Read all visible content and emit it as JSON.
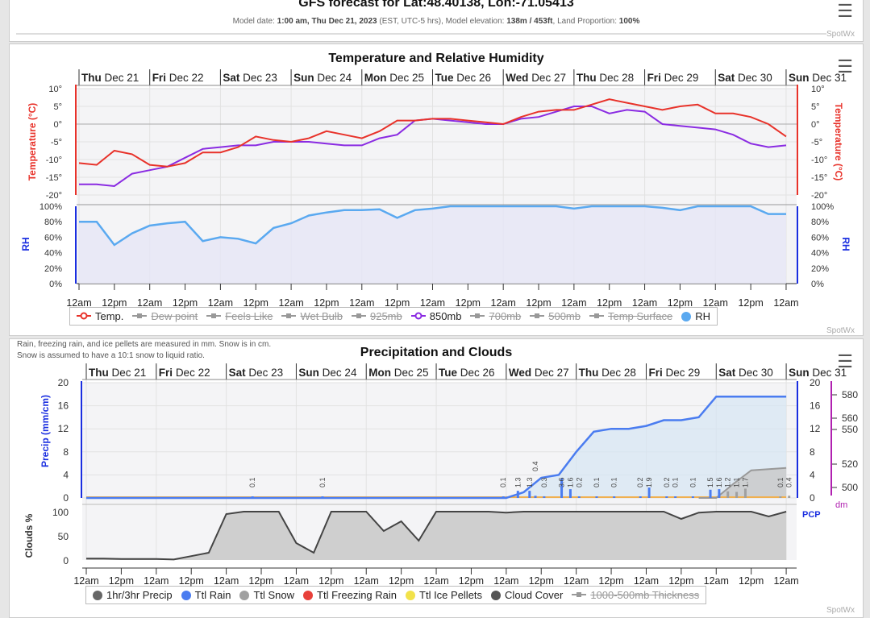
{
  "header": {
    "title": "GFS forecast for Lat:48.40138, Lon:-71.05413",
    "model_date_label": "Model date:",
    "model_date": "1:00 am, Thu Dec 21, 2023",
    "tz": "(EST, UTC-5 hrs),",
    "elev_label": "Model elevation:",
    "elev": "138m / 453ft",
    "land_label": ", Land Proportion:",
    "land": "100%",
    "credit": "SpotWx"
  },
  "days": [
    [
      "Thu",
      "Dec 21"
    ],
    [
      "Fri",
      "Dec 22"
    ],
    [
      "Sat",
      "Dec 23"
    ],
    [
      "Sun",
      "Dec 24"
    ],
    [
      "Mon",
      "Dec 25"
    ],
    [
      "Tue",
      "Dec 26"
    ],
    [
      "Wed",
      "Dec 27"
    ],
    [
      "Thu",
      "Dec 28"
    ],
    [
      "Fri",
      "Dec 29"
    ],
    [
      "Sat",
      "Dec 30"
    ],
    [
      "Sun",
      "Dec 31"
    ]
  ],
  "hour_labels": [
    "12am",
    "12pm"
  ],
  "temp_chart": {
    "title": "Temperature and Relative Humidity",
    "credit": "SpotWx",
    "y_left_label": "Temperature (°C)",
    "y_right_label": "Temperature (°C)",
    "rh_label": "RH",
    "temp_ticks": [
      "10°",
      "5°",
      "0°",
      "-5°",
      "-10°",
      "-15°",
      "-20°"
    ],
    "rh_ticks": [
      "100%",
      "80%",
      "60%",
      "40%",
      "20%",
      "0%"
    ],
    "legend": [
      {
        "label": "Temp.",
        "color": "#e8322a",
        "on": true,
        "icon": "circle-line"
      },
      {
        "label": "Dew point",
        "on": false,
        "icon": "diamond-line"
      },
      {
        "label": "Feels Like",
        "on": false,
        "icon": "square-line"
      },
      {
        "label": "Wet Bulb",
        "on": false,
        "icon": "triangle-line"
      },
      {
        "label": "925mb",
        "on": false,
        "icon": "triangle-down-line"
      },
      {
        "label": "850mb",
        "color": "#8a2be2",
        "on": true,
        "icon": "circle-line"
      },
      {
        "label": "700mb",
        "on": false,
        "icon": "diamond-line"
      },
      {
        "label": "500mb",
        "on": false,
        "icon": "square-line"
      },
      {
        "label": "Temp Surface",
        "on": false,
        "icon": "triangle-line"
      },
      {
        "label": "RH",
        "color": "#5aa9f0",
        "on": true,
        "icon": "circle"
      }
    ]
  },
  "precip_chart": {
    "title": "Precipitation and Clouds",
    "credit": "SpotWx",
    "note1": "Rain, freezing rain, and ice pellets are measured in mm. Snow is in cm.",
    "note2": "Snow is assumed to have a 10:1 snow to liquid ratio.",
    "y_left_label": "Precip (mm/cm)",
    "y_right_label": "PCP",
    "thick_label": "dm",
    "cloud_label": "Clouds %",
    "precip_ticks": [
      "20",
      "16",
      "12",
      "8",
      "4",
      "0"
    ],
    "thick_ticks": [
      "580",
      "560",
      "550",
      "520",
      "500"
    ],
    "cloud_ticks": [
      "100",
      "50",
      "0"
    ],
    "legend": [
      {
        "label": "1hr/3hr Precip",
        "color": "#666666",
        "on": true
      },
      {
        "label": "Ttl Rain",
        "color": "#4a7cf0",
        "on": true
      },
      {
        "label": "Ttl Snow",
        "color": "#a0a0a0",
        "on": true
      },
      {
        "label": "Ttl Freezing Rain",
        "color": "#e8403a",
        "on": true
      },
      {
        "label": "Ttl Ice Pellets",
        "color": "#f2e24a",
        "on": true
      },
      {
        "label": "Cloud Cover",
        "color": "#555555",
        "on": true
      },
      {
        "label": "1000-500mb Thickness",
        "on": false
      }
    ]
  },
  "chart_data": [
    {
      "type": "line",
      "title": "Temperature and Relative Humidity",
      "x_start": "2023-12-21 00:00",
      "x_interval_hours": 6,
      "ylim_temp": [
        -20,
        10
      ],
      "ylim_rh": [
        0,
        100
      ],
      "series": [
        {
          "name": "Temp.",
          "color": "#e8322a",
          "values": [
            -11,
            -11.5,
            -7.5,
            -8.5,
            -11.5,
            -12,
            -11,
            -8,
            -8,
            -6.5,
            -3.5,
            -4.5,
            -5,
            -4,
            -2,
            -3,
            -4,
            -2,
            1,
            1,
            1.5,
            1.5,
            1,
            0.5,
            0,
            2,
            3.5,
            4,
            4,
            5.5,
            7,
            6,
            5,
            4,
            5,
            5.5,
            3,
            3,
            2,
            0,
            -3.5
          ]
        },
        {
          "name": "850mb",
          "color": "#8a2be2",
          "values": [
            -17,
            -17,
            -17.5,
            -14,
            -13,
            -12,
            -9.5,
            -7,
            -6.5,
            -6,
            -6,
            -5,
            -5,
            -5,
            -5.5,
            -6,
            -6,
            -4,
            -3,
            1,
            1.5,
            1,
            0.5,
            0,
            0,
            1.5,
            2,
            3.5,
            5,
            5,
            3,
            4,
            3.5,
            0,
            -0.5,
            -1,
            -1.5,
            -3,
            -5.5,
            -6.5,
            -6
          ]
        },
        {
          "name": "RH",
          "color": "#5aa9f0",
          "values": [
            80,
            80,
            50,
            65,
            75,
            78,
            80,
            55,
            60,
            58,
            52,
            72,
            78,
            88,
            92,
            95,
            95,
            96,
            85,
            95,
            97,
            100,
            100,
            100,
            100,
            100,
            100,
            100,
            97,
            100,
            100,
            100,
            100,
            98,
            95,
            100,
            100,
            100,
            100,
            90,
            90
          ]
        }
      ]
    },
    {
      "type": "area",
      "title": "Precipitation and Clouds",
      "x_start": "2023-12-21 00:00",
      "x_interval_hours": 6,
      "ylim_precip": [
        0,
        20
      ],
      "ylim_clouds": [
        0,
        100
      ],
      "series": [
        {
          "name": "Ttl Rain",
          "color": "#4a7cf0",
          "values": [
            0,
            0,
            0,
            0,
            0,
            0,
            0,
            0,
            0,
            0,
            0,
            0,
            0,
            0,
            0,
            0,
            0,
            0,
            0,
            0,
            0,
            0,
            0,
            0,
            0,
            1,
            3.5,
            4,
            8,
            11.5,
            12,
            12,
            12.5,
            13.5,
            13.5,
            14,
            17.6,
            17.6,
            17.6,
            17.6,
            17.6
          ]
        },
        {
          "name": "Ttl Snow",
          "color": "#a0a0a0",
          "values": [
            0,
            0,
            0,
            0,
            0,
            0,
            0,
            0,
            0,
            0,
            0,
            0,
            0,
            0,
            0,
            0,
            0,
            0,
            0,
            0,
            0,
            0,
            0,
            0,
            0,
            0,
            0,
            0,
            0,
            0,
            0,
            0,
            0,
            0,
            0,
            0,
            0,
            2.5,
            4.8,
            5,
            5.2
          ]
        },
        {
          "name": "Cloud Cover",
          "color": "#555555",
          "values": [
            3,
            3,
            2,
            2,
            2,
            1,
            8,
            15,
            95,
            100,
            100,
            100,
            35,
            15,
            100,
            100,
            100,
            60,
            80,
            40,
            100,
            100,
            100,
            100,
            98,
            100,
            100,
            100,
            100,
            100,
            100,
            100,
            100,
            100,
            85,
            98,
            100,
            100,
            100,
            90,
            100
          ]
        }
      ],
      "precip_bars": [
        {
          "time": "2023-12-23 09:00",
          "value": 0.1,
          "kind": "rain"
        },
        {
          "time": "2023-12-24 09:00",
          "value": 0.1,
          "kind": "rain"
        },
        {
          "time": "2023-12-26 23:00",
          "value": 0.1,
          "kind": "rain"
        },
        {
          "time": "2023-12-27 04:00",
          "value": 1.3,
          "kind": "rain"
        },
        {
          "time": "2023-12-27 08:00",
          "value": 1.3,
          "kind": "rain"
        },
        {
          "time": "2023-12-27 10:00",
          "value": 0.4,
          "kind": "rain"
        },
        {
          "time": "2023-12-27 13:00",
          "value": 0.3,
          "kind": "rain"
        },
        {
          "time": "2023-12-27 19:00",
          "value": 3.6,
          "kind": "rain"
        },
        {
          "time": "2023-12-27 22:00",
          "value": 1.6,
          "kind": "rain"
        },
        {
          "time": "2023-12-28 01:00",
          "value": 0.2,
          "kind": "rain"
        },
        {
          "time": "2023-12-28 07:00",
          "value": 0.1,
          "kind": "rain"
        },
        {
          "time": "2023-12-28 13:00",
          "value": 0.1,
          "kind": "rain"
        },
        {
          "time": "2023-12-28 22:00",
          "value": 0.2,
          "kind": "rain"
        },
        {
          "time": "2023-12-29 01:00",
          "value": 1.9,
          "kind": "rain"
        },
        {
          "time": "2023-12-29 07:00",
          "value": 0.2,
          "kind": "rain"
        },
        {
          "time": "2023-12-29 10:00",
          "value": 0.1,
          "kind": "rain"
        },
        {
          "time": "2023-12-29 16:00",
          "value": 0.1,
          "kind": "rain"
        },
        {
          "time": "2023-12-29 22:00",
          "value": 1.5,
          "kind": "rain"
        },
        {
          "time": "2023-12-30 01:00",
          "value": 1.6,
          "kind": "rain"
        },
        {
          "time": "2023-12-30 04:00",
          "value": 1.2,
          "kind": "snow"
        },
        {
          "time": "2023-12-30 07:00",
          "value": 1.1,
          "kind": "snow"
        },
        {
          "time": "2023-12-30 10:00",
          "value": 1.7,
          "kind": "snow"
        },
        {
          "time": "2023-12-30 22:00",
          "value": 0.1,
          "kind": "snow"
        },
        {
          "time": "2023-12-31 01:00",
          "value": 0.4,
          "kind": "snow"
        }
      ]
    }
  ]
}
